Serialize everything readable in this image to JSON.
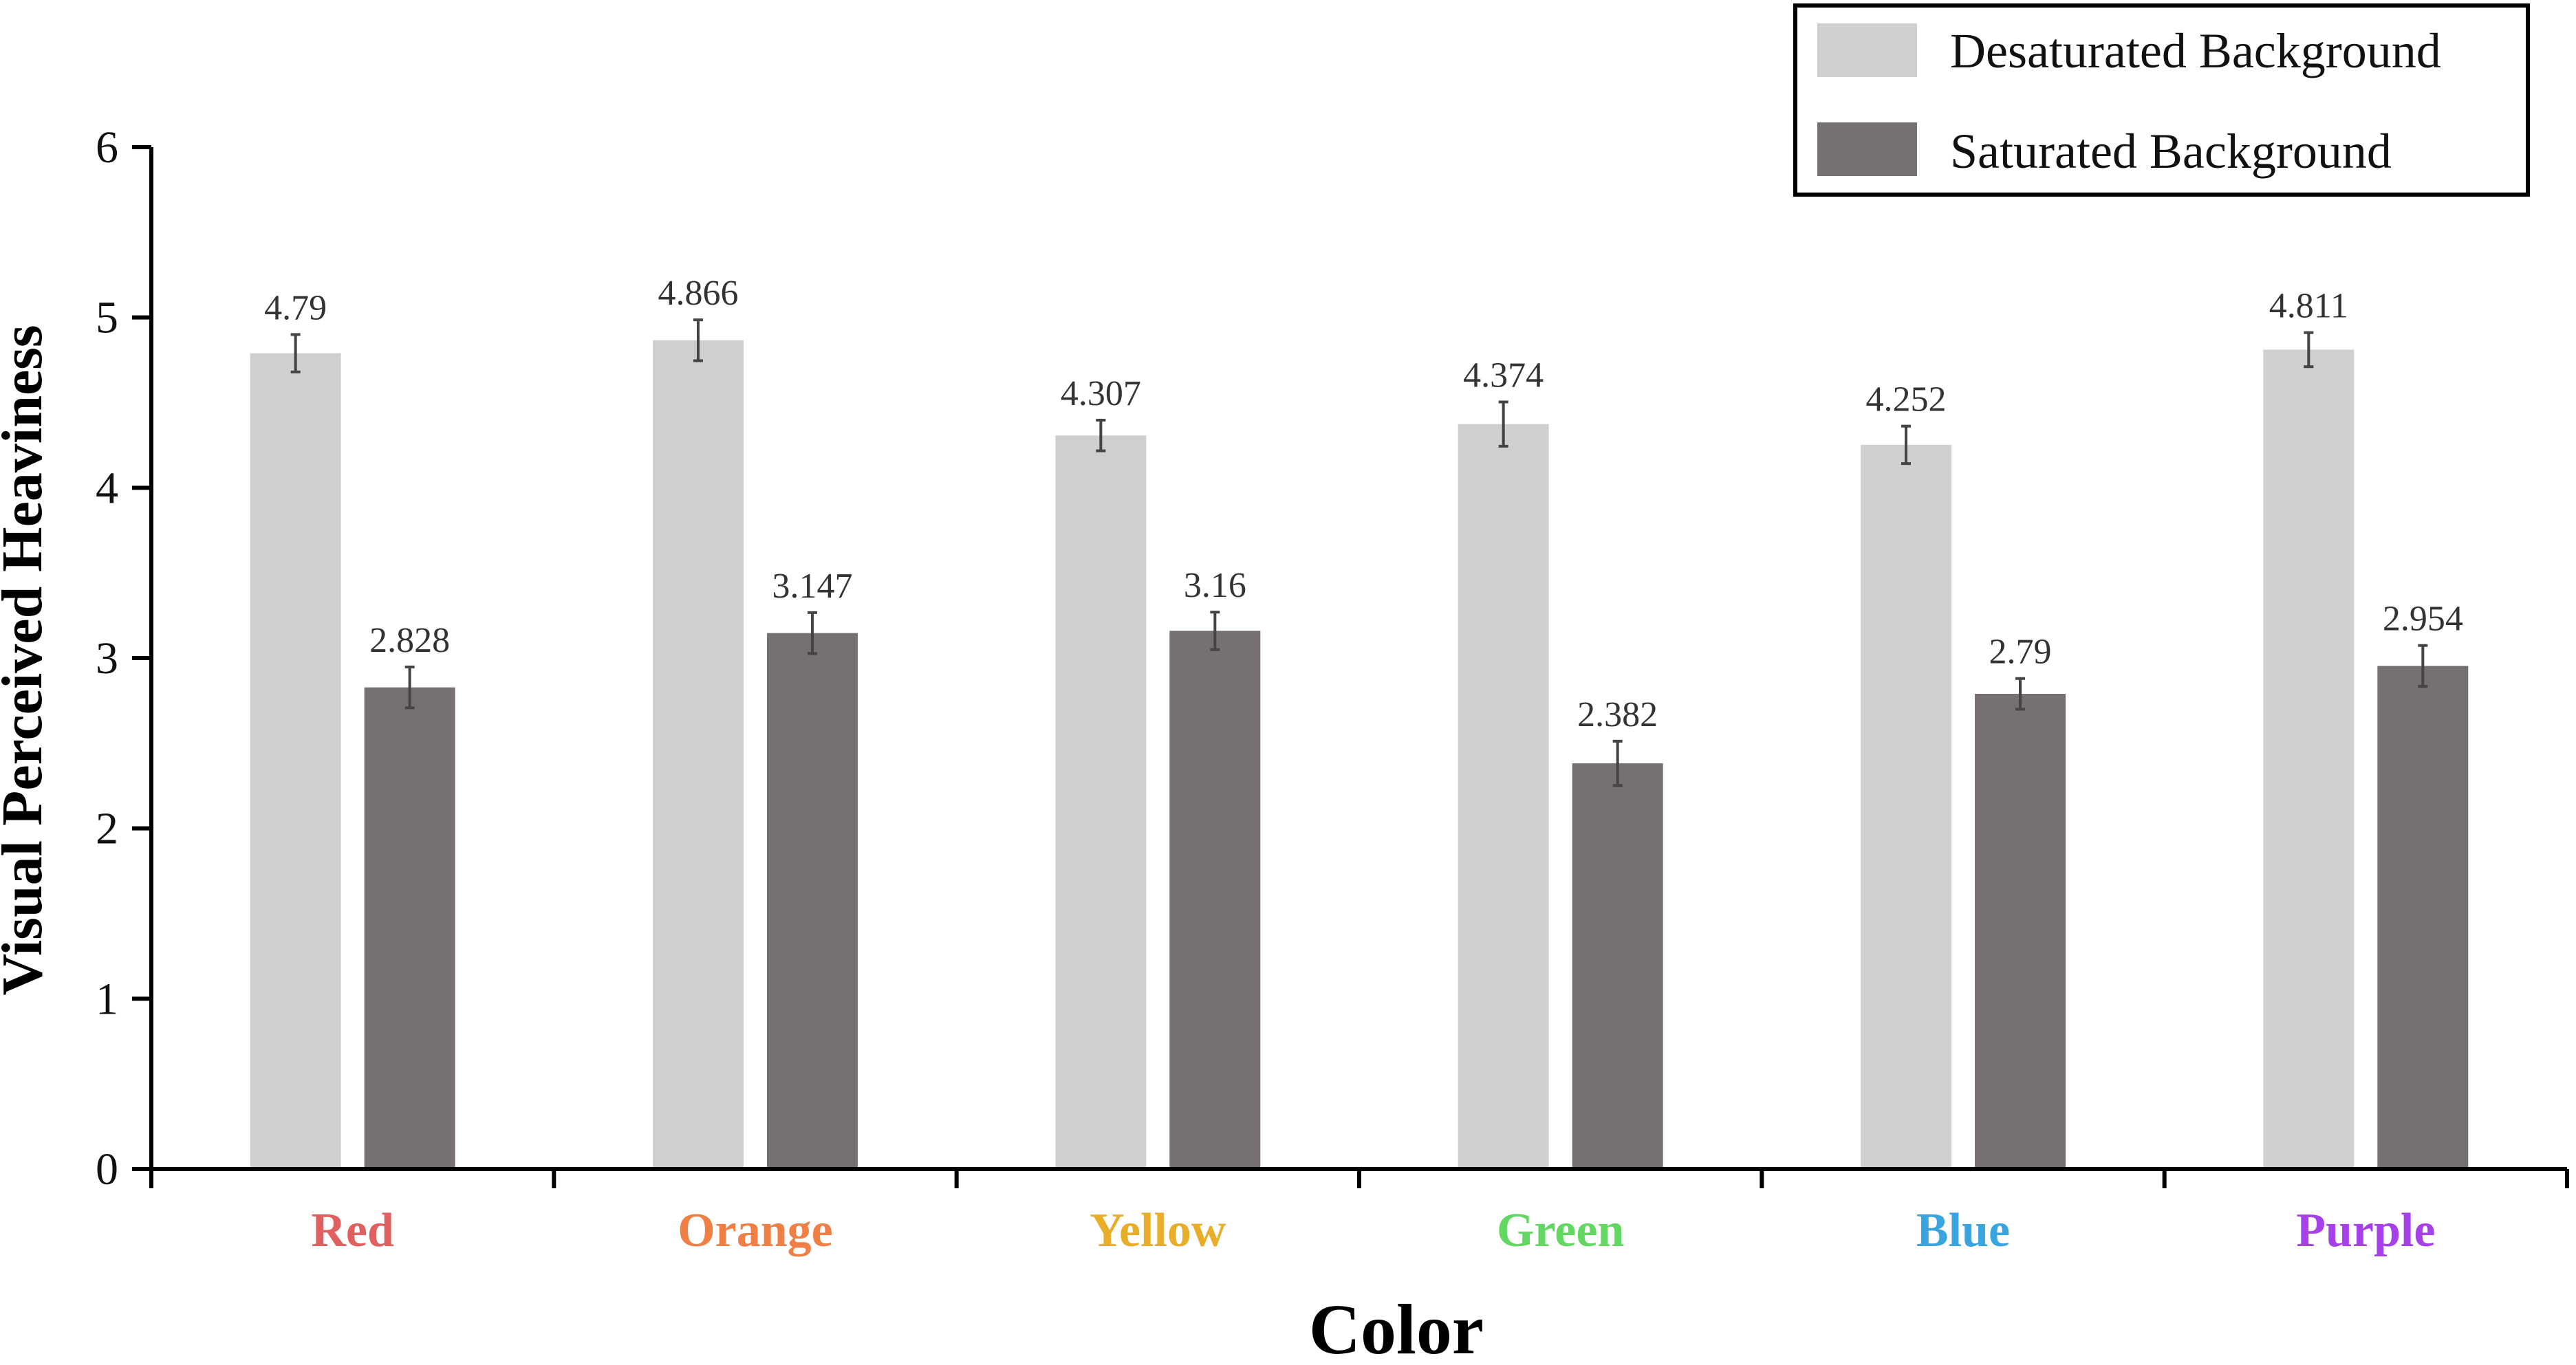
{
  "chart_data": {
    "type": "bar",
    "categories": [
      "Red",
      "Orange",
      "Yellow",
      "Green",
      "Blue",
      "Purple"
    ],
    "category_colors": [
      "#e06060",
      "#ef7f45",
      "#e8ae2a",
      "#62d862",
      "#3aa4e0",
      "#a640e8"
    ],
    "series": [
      {
        "name": "Desaturated Background",
        "color": "#d0cfd0",
        "values": [
          4.79,
          4.866,
          4.307,
          4.374,
          4.252,
          4.811
        ],
        "labels": [
          "4.79",
          "4.866",
          "4.307",
          "4.374",
          "4.252",
          "4.811"
        ],
        "errors": [
          0.11,
          0.12,
          0.09,
          0.13,
          0.11,
          0.1
        ]
      },
      {
        "name": "Saturated Background",
        "color": "#767070",
        "values": [
          2.828,
          3.147,
          3.16,
          2.382,
          2.79,
          2.954
        ],
        "labels": [
          "2.828",
          "3.147",
          "3.16",
          "2.382",
          "2.79",
          "2.954"
        ],
        "errors": [
          0.12,
          0.12,
          0.11,
          0.13,
          0.09,
          0.12
        ]
      }
    ],
    "xlabel": "Color",
    "ylabel": "Visual Perceived Heaviness",
    "ylim": [
      0,
      6
    ],
    "yticks": [
      "0",
      "1",
      "2",
      "3",
      "4",
      "5",
      "6"
    ],
    "grid": false,
    "legend_position": "top-right"
  }
}
